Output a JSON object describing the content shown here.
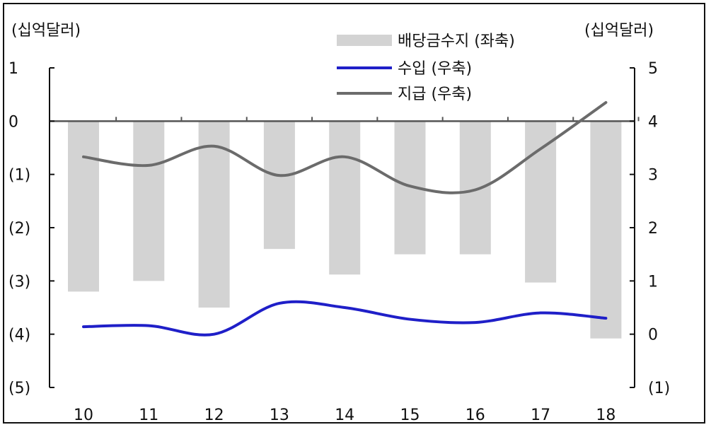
{
  "chart_data": {
    "type": "bar+line",
    "categories": [
      "10",
      "11",
      "12",
      "13",
      "14",
      "15",
      "16",
      "17",
      "18"
    ],
    "left_axis": {
      "unit": "(십억달러)",
      "ylim": [
        -5,
        1
      ],
      "ticks": [
        1,
        0,
        -1,
        -2,
        -3,
        -4,
        -5
      ],
      "tick_labels": [
        "1",
        "0",
        "(1)",
        "(2)",
        "(3)",
        "(4)",
        "(5)"
      ]
    },
    "right_axis": {
      "unit": "(십억달러)",
      "ylim": [
        -1,
        5
      ],
      "ticks": [
        5,
        4,
        3,
        2,
        1,
        0,
        -1
      ],
      "tick_labels": [
        "5",
        "4",
        "3",
        "2",
        "1",
        "0",
        "(1)"
      ]
    },
    "series": [
      {
        "name": "배당금수지 (좌축)",
        "kind": "bar",
        "axis": "left",
        "color": "#d3d3d3",
        "values": [
          -3.2,
          -3.0,
          -3.5,
          -2.4,
          -2.88,
          -2.5,
          -2.5,
          -3.03,
          -4.08
        ]
      },
      {
        "name": "수입 (우축)",
        "kind": "line",
        "axis": "right",
        "color": "#1f1fc8",
        "values": [
          0.14,
          0.16,
          0.0,
          0.58,
          0.5,
          0.28,
          0.22,
          0.4,
          0.3
        ]
      },
      {
        "name": "지급 (우축)",
        "kind": "line",
        "axis": "right",
        "color": "#6b6b6b",
        "values": [
          3.33,
          3.17,
          3.53,
          2.98,
          3.33,
          2.78,
          2.71,
          3.48,
          4.35
        ]
      }
    ],
    "legend_position": "top-right",
    "grid": false
  }
}
